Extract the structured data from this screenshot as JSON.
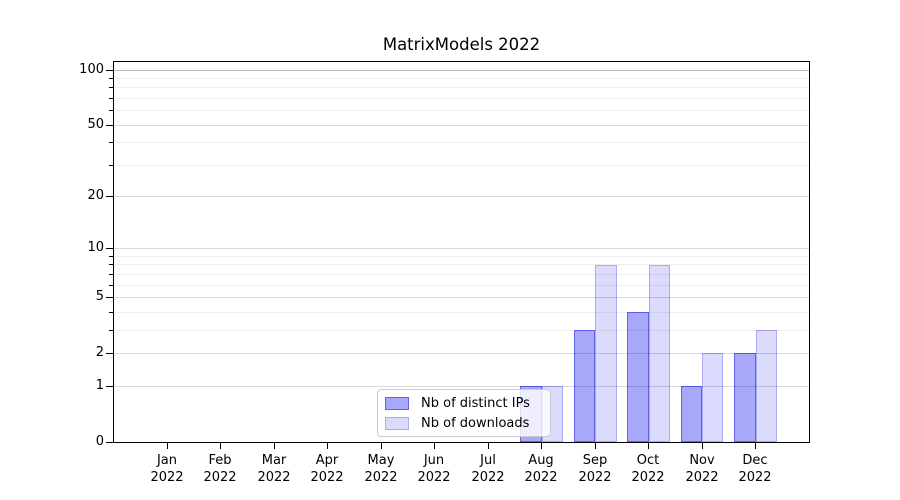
{
  "chart_data": {
    "type": "bar",
    "title": "MatrixModels 2022",
    "categories": [
      "Jan",
      "Feb",
      "Mar",
      "Apr",
      "May",
      "Jun",
      "Jul",
      "Aug",
      "Sep",
      "Oct",
      "Nov",
      "Dec"
    ],
    "x_year_label": "2022",
    "series": [
      {
        "name": "Nb of distinct IPs",
        "key": "distinct-ips",
        "values": [
          0,
          0,
          0,
          0,
          0,
          0,
          0,
          1,
          3,
          4,
          1,
          2
        ],
        "fill": "rgba(0,0,240,0.34)",
        "edge": "rgba(0,0,210,0.42)"
      },
      {
        "name": "Nb of downloads",
        "key": "downloads",
        "values": [
          0,
          0,
          0,
          0,
          0,
          0,
          0,
          1,
          8,
          8,
          2,
          3
        ],
        "fill": "rgba(0,0,240,0.14)",
        "edge": "rgba(0,0,210,0.22)"
      }
    ],
    "y_axis": {
      "scale": "log10(1+x)",
      "major_ticks": [
        0,
        1,
        2,
        5,
        10,
        20,
        50,
        100
      ],
      "minor_ticks": [
        3,
        4,
        6,
        7,
        8,
        9,
        30,
        40,
        60,
        70,
        80,
        90
      ],
      "top_value": 100
    },
    "legend_position": "lower center",
    "grid": "horizontal",
    "colors": {
      "grid_major": "#d8d8d8",
      "grid_top": "#bdbdbd",
      "grid_minor": "#eeeeee",
      "axis": "#000000",
      "background": "#ffffff"
    }
  }
}
